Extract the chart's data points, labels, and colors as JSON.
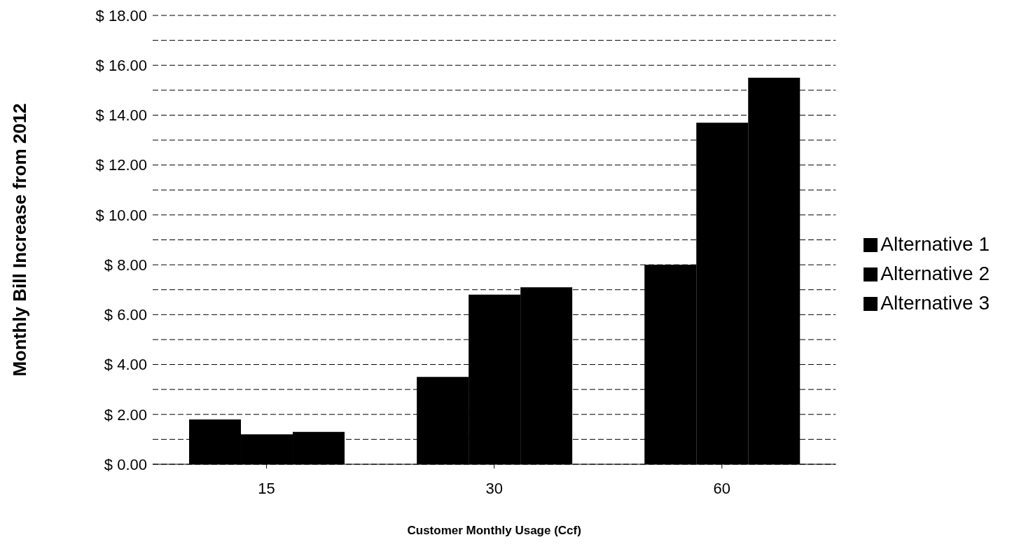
{
  "chart_data": {
    "type": "bar",
    "xlabel": "Customer Monthly Usage (Ccf)",
    "ylabel": "Monthly Bill Increase from 2012",
    "categories": [
      "15",
      "30",
      "60"
    ],
    "series": [
      {
        "name": "Alternative 1",
        "color": "#000000",
        "values": [
          1.8,
          3.5,
          8.0
        ]
      },
      {
        "name": "Alternative 2",
        "color": "#000000",
        "values": [
          1.2,
          6.8,
          13.7
        ]
      },
      {
        "name": "Alternative 3",
        "color": "#000000",
        "values": [
          1.3,
          7.1,
          15.5
        ]
      }
    ],
    "ylim": [
      0,
      18
    ],
    "yticks": [
      {
        "value": 0,
        "label": "$ 0.00"
      },
      {
        "value": 1,
        "label": null
      },
      {
        "value": 2,
        "label": "$ 2.00"
      },
      {
        "value": 3,
        "label": null
      },
      {
        "value": 4,
        "label": "$ 4.00"
      },
      {
        "value": 5,
        "label": null
      },
      {
        "value": 6,
        "label": "$ 6.00"
      },
      {
        "value": 7,
        "label": null
      },
      {
        "value": 8,
        "label": "$ 8.00"
      },
      {
        "value": 9,
        "label": null
      },
      {
        "value": 10,
        "label": "$ 10.00"
      },
      {
        "value": 11,
        "label": null
      },
      {
        "value": 12,
        "label": "$ 12.00"
      },
      {
        "value": 13,
        "label": null
      },
      {
        "value": 14,
        "label": "$ 14.00"
      },
      {
        "value": 15,
        "label": null
      },
      {
        "value": 16,
        "label": "$ 16.00"
      },
      {
        "value": 17,
        "label": null
      },
      {
        "value": 18,
        "label": "$ 18.00"
      }
    ],
    "grid": "y",
    "legend": "right"
  }
}
